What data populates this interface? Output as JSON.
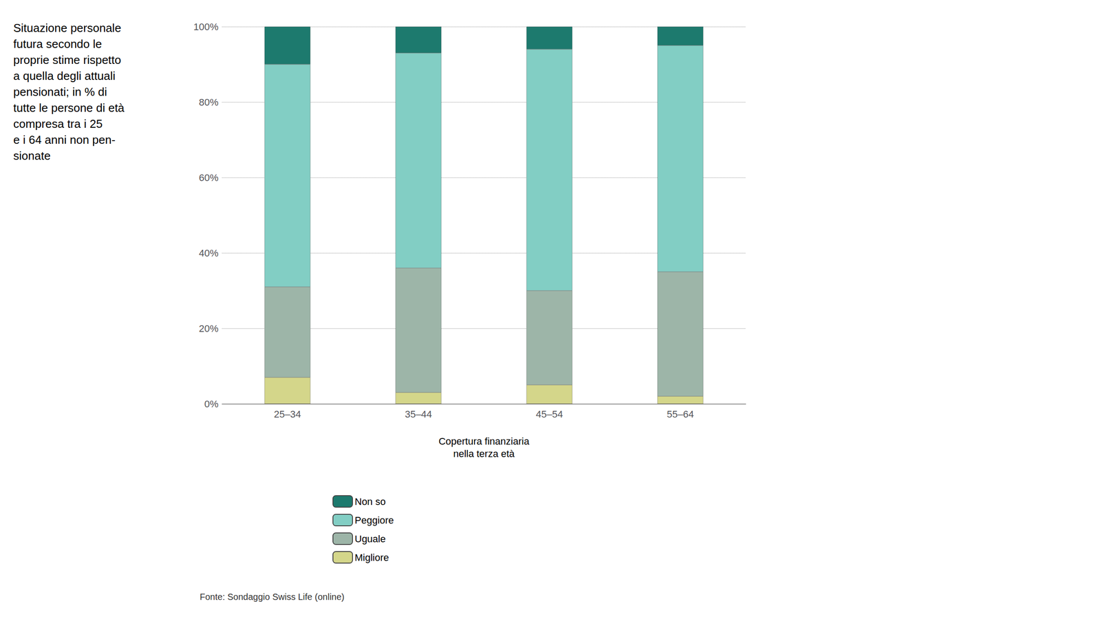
{
  "chart_data": {
    "type": "bar",
    "stacked": true,
    "title": "Situazione personale\nfutura secondo le\nproprie stime rispetto\na quella degli attuali\npensionati; in % di\ntutte le persone di età\ncompresa tra i 25\ne i 64 anni non pen-\nsionate",
    "xlabel": "Copertura finanziaria\nnella terza età",
    "annotations": [
      "Fonte: Sondaggio Swiss Life (online)"
    ],
    "categories": [
      "25–34",
      "35–44",
      "45–54",
      "55–64"
    ],
    "series": [
      {
        "name": "Migliore",
        "color": "#d4d68a",
        "values": [
          7,
          3,
          5,
          2
        ]
      },
      {
        "name": "Uguale",
        "color": "#9db5a8",
        "values": [
          24,
          33,
          25,
          33
        ]
      },
      {
        "name": "Peggiore",
        "color": "#82cec4",
        "values": [
          59,
          57,
          64,
          60
        ]
      },
      {
        "name": "Non so",
        "color": "#1d7a6e",
        "values": [
          10,
          7,
          6,
          5
        ]
      }
    ],
    "ylim": [
      0,
      100
    ],
    "yticks": [
      {
        "value": 0,
        "label": "0%"
      },
      {
        "value": 20,
        "label": "20%"
      },
      {
        "value": 40,
        "label": "40%"
      },
      {
        "value": 60,
        "label": "60%"
      },
      {
        "value": 80,
        "label": "80%"
      },
      {
        "value": 100,
        "label": "100%"
      }
    ],
    "grid": true,
    "legend": "bottom"
  }
}
